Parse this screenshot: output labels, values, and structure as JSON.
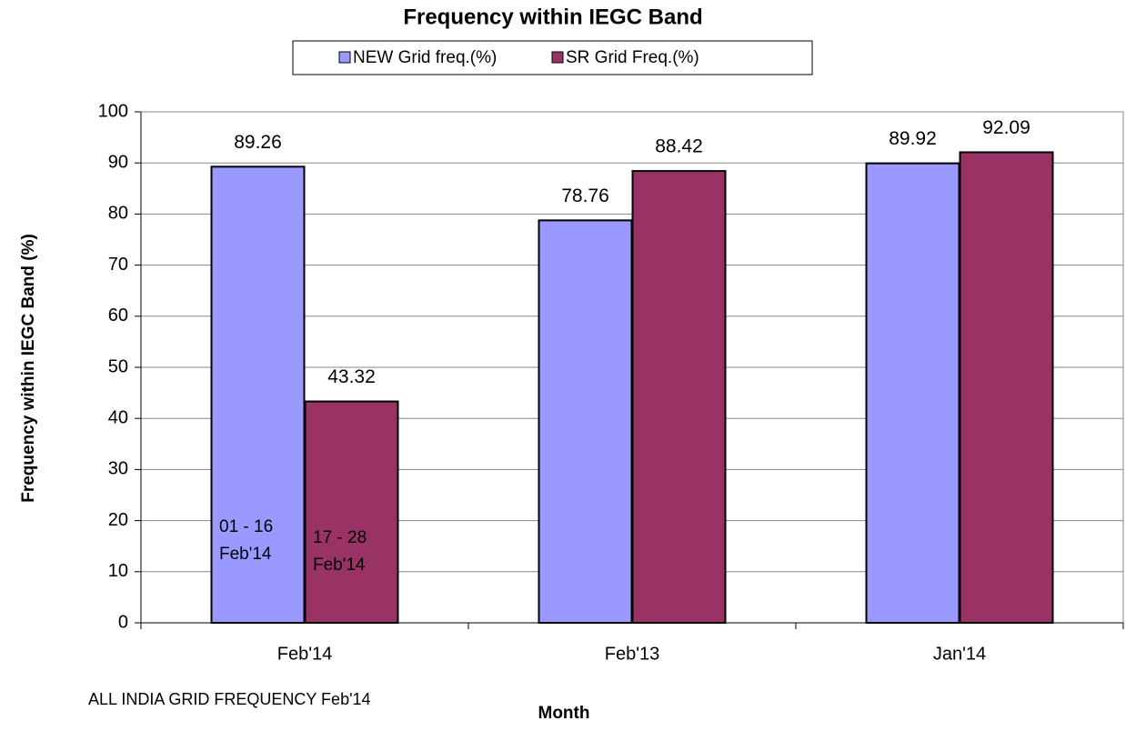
{
  "chart_data": {
    "type": "bar",
    "title": "Frequency within IEGC Band",
    "y_label": "Frequency within IEGC Band (%)",
    "x_label": "Month",
    "note": "ALL INDIA GRID FREQUENCY Feb'14",
    "categories": [
      "Feb'14",
      "Feb'13",
      "Jan'14"
    ],
    "series": [
      {
        "name": "NEW Grid freq.(%)",
        "color": "#9999ff",
        "values": [
          89.26,
          78.76,
          89.92
        ]
      },
      {
        "name": "SR Grid Freq.(%)",
        "color": "#993366",
        "values": [
          43.32,
          88.42,
          92.09
        ]
      }
    ],
    "annotations": [
      [
        "01 - 16",
        "Feb'14"
      ],
      [
        "17 - 28",
        "Feb'14"
      ]
    ],
    "ylim": [
      0,
      100
    ],
    "yticks": [
      0,
      10,
      20,
      30,
      40,
      50,
      60,
      70,
      80,
      90,
      100
    ],
    "grid": true,
    "legend": "top"
  }
}
